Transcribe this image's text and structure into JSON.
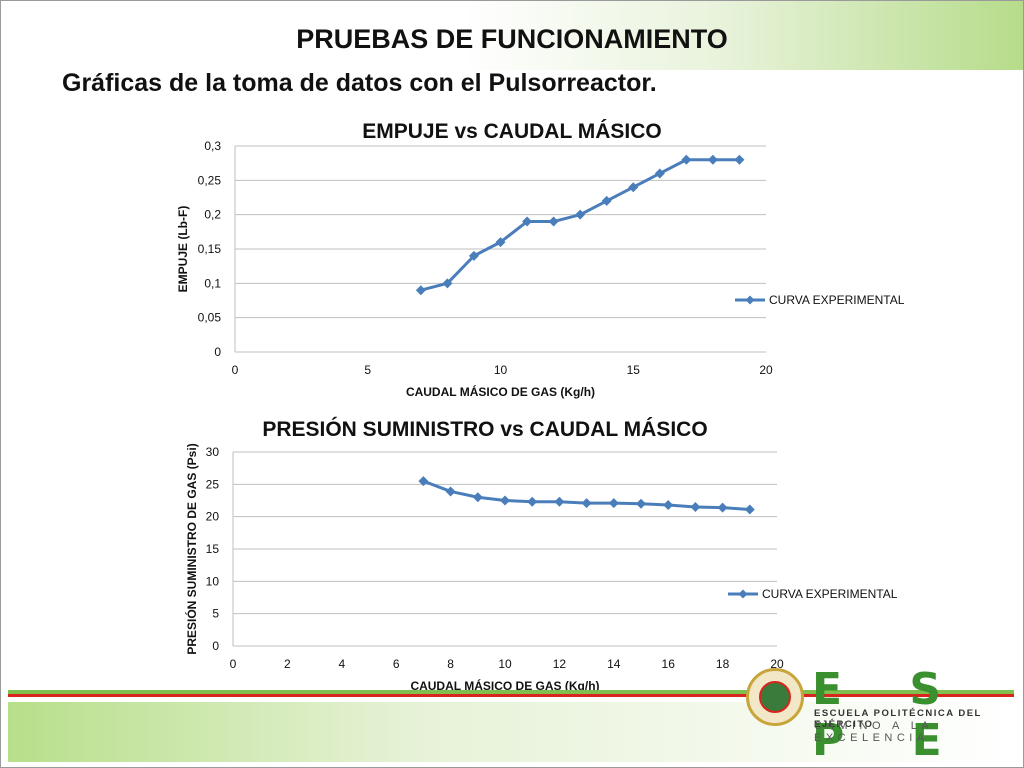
{
  "slide": {
    "title": "PRUEBAS DE FUNCIONAMIENTO",
    "subtitle": "Gráficas de la toma de datos con el Pulsorreactor."
  },
  "logo": {
    "name": "E S P E",
    "line1": "ESCUELA POLITÉCNICA DEL EJÉRCITO",
    "line2": "CAMINO A LA EXCELENCIA"
  },
  "colors": {
    "series": "#4a7ebb",
    "grid": "#bfbfbf",
    "brand_green": "#3a8f2e",
    "brand_red": "#d9251c"
  },
  "chart_data": [
    {
      "type": "line",
      "title": "EMPUJE vs CAUDAL MÁSICO",
      "xlabel": "CAUDAL MÁSICO DE GAS (Kg/h)",
      "ylabel": "EMPUJE (Lb-F)",
      "xlim": [
        0,
        20
      ],
      "ylim": [
        0,
        0.3
      ],
      "xticks": [
        0,
        5,
        10,
        15,
        20
      ],
      "xtick_labels": [
        "0",
        "5",
        "10",
        "15",
        "20"
      ],
      "yticks": [
        0,
        0.05,
        0.1,
        0.15,
        0.2,
        0.25,
        0.3
      ],
      "ytick_labels": [
        "0",
        "0,05",
        "0,1",
        "0,15",
        "0,2",
        "0,25",
        "0,3"
      ],
      "grid": "horizontal",
      "legend_position": "right",
      "series": [
        {
          "name": "CURVA EXPERIMENTAL",
          "x": [
            7,
            8,
            9,
            10,
            11,
            12,
            13,
            14,
            15,
            16,
            17,
            18,
            19
          ],
          "y": [
            0.09,
            0.1,
            0.14,
            0.16,
            0.19,
            0.19,
            0.2,
            0.22,
            0.24,
            0.26,
            0.28,
            0.28,
            0.28
          ]
        }
      ]
    },
    {
      "type": "line",
      "title": "PRESIÓN SUMINISTRO vs CAUDAL MÁSICO",
      "xlabel": "CAUDAL MÁSICO DE GAS (Kg/h)",
      "ylabel": "PRESIÓN SUMINISTRO DE GAS (Psi)",
      "xlim": [
        0,
        20
      ],
      "ylim": [
        0,
        30
      ],
      "xticks": [
        0,
        2,
        4,
        6,
        8,
        10,
        12,
        14,
        16,
        18,
        20
      ],
      "xtick_labels": [
        "0",
        "2",
        "4",
        "6",
        "8",
        "10",
        "12",
        "14",
        "16",
        "18",
        "20"
      ],
      "yticks": [
        0,
        5,
        10,
        15,
        20,
        25,
        30
      ],
      "ytick_labels": [
        "0",
        "5",
        "10",
        "15",
        "20",
        "25",
        "30"
      ],
      "grid": "horizontal",
      "legend_position": "right",
      "series": [
        {
          "name": "CURVA EXPERIMENTAL",
          "x": [
            7,
            8,
            9,
            10,
            11,
            12,
            13,
            14,
            15,
            16,
            17,
            18,
            19
          ],
          "y": [
            25.5,
            23.9,
            23.0,
            22.5,
            22.3,
            22.3,
            22.1,
            22.1,
            22.0,
            21.8,
            21.5,
            21.4,
            21.1
          ]
        }
      ]
    }
  ]
}
